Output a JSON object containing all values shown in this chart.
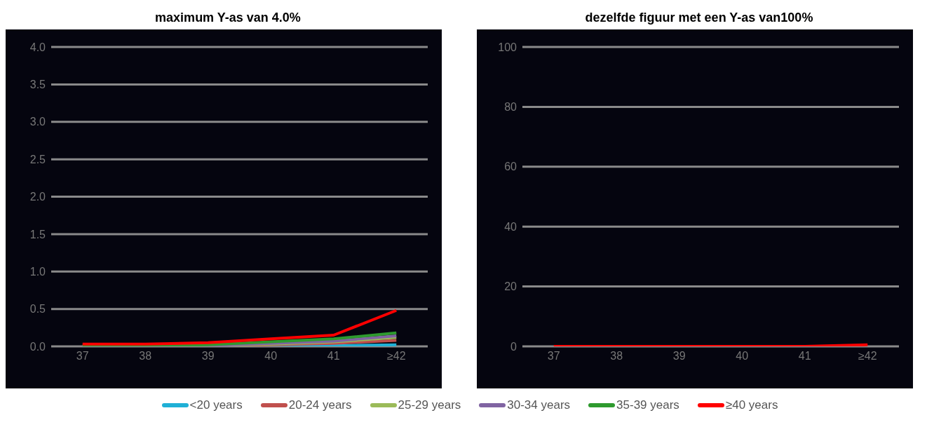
{
  "chart_data": [
    {
      "type": "line",
      "title": "maximum Y-as van 4.0%",
      "categories": [
        "37",
        "38",
        "39",
        "40",
        "41",
        "≥42"
      ],
      "series": [
        {
          "color": "#1fb0d6",
          "values": [
            null,
            null,
            0,
            0,
            0.01,
            0.02
          ]
        },
        {
          "color": "#c0504d",
          "values": [
            null,
            null,
            0.01,
            0.02,
            0.04,
            0.08
          ]
        },
        {
          "color": "#9bbb59",
          "values": [
            0,
            0,
            0.01,
            0.03,
            0.06,
            0.12
          ]
        },
        {
          "color": "#8064a2",
          "values": [
            0,
            0,
            0.01,
            0.04,
            0.07,
            0.14
          ]
        },
        {
          "color": "#2e9a2e",
          "values": [
            0.01,
            0.01,
            0.02,
            0.06,
            0.1,
            0.18
          ]
        },
        {
          "color": "#ff0000",
          "values": [
            0.03,
            0.03,
            0.05,
            0.1,
            0.15,
            0.48
          ]
        }
      ],
      "ylim": [
        0,
        4
      ],
      "yticks": [
        {
          "value": 0,
          "label": "0.0"
        },
        {
          "value": 0.5,
          "label": "0.5"
        },
        {
          "value": 1,
          "label": "1.0"
        },
        {
          "value": 1.5,
          "label": "1.5"
        },
        {
          "value": 2,
          "label": "2.0"
        },
        {
          "value": 2.5,
          "label": "2.5"
        },
        {
          "value": 3,
          "label": "3.0"
        },
        {
          "value": 3.5,
          "label": "3.5"
        },
        {
          "value": 4,
          "label": "4.0"
        }
      ],
      "grid": "y",
      "marker": "none"
    },
    {
      "type": "line",
      "title": "dezelfde figuur met een Y-as van100%",
      "categories": [
        "37",
        "38",
        "39",
        "40",
        "41",
        "≥42"
      ],
      "series": [
        {
          "name": "<20 years",
          "color": "#1fb0d6",
          "values": [
            null,
            null,
            null,
            null,
            null,
            null
          ]
        },
        {
          "name": "20-24 years",
          "color": "#c0504d",
          "values": [
            null,
            null,
            null,
            null,
            null,
            null
          ]
        },
        {
          "name": "25-29 years",
          "color": "#9bbb59",
          "values": [
            null,
            null,
            null,
            null,
            null,
            null
          ]
        },
        {
          "name": "30-34 years",
          "color": "#8064a2",
          "values": [
            null,
            null,
            null,
            null,
            null,
            null
          ]
        },
        {
          "name": "35-39 years",
          "color": "#2e9a2e",
          "values": [
            null,
            null,
            null,
            null,
            null,
            null
          ]
        },
        {
          "name": "≥40 years",
          "color": "#ff0000",
          "values": [
            0,
            0,
            0,
            0,
            0,
            0.5
          ]
        }
      ],
      "ylim": [
        0,
        100
      ],
      "yticks": [
        0,
        20,
        40,
        60,
        80,
        100
      ],
      "grid": "y",
      "marker": "none",
      "legend": "bottom"
    }
  ]
}
